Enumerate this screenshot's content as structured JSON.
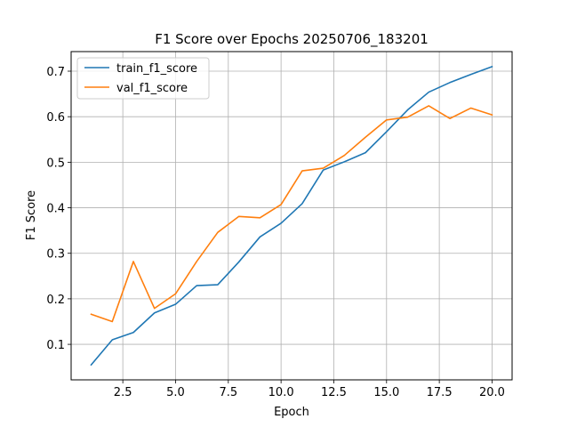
{
  "chart_data": {
    "type": "line",
    "title": "F1 Score over Epochs 20250706_183201",
    "xlabel": "Epoch",
    "ylabel": "F1 Score",
    "xlim": [
      0.05,
      20.95
    ],
    "ylim": [
      0.022,
      0.743
    ],
    "xticks": [
      2.5,
      5.0,
      7.5,
      10.0,
      12.5,
      15.0,
      17.5,
      20.0
    ],
    "xtick_labels": [
      "2.5",
      "5.0",
      "7.5",
      "10.0",
      "12.5",
      "15.0",
      "17.5",
      "20.0"
    ],
    "yticks": [
      0.1,
      0.2,
      0.3,
      0.4,
      0.5,
      0.6,
      0.7
    ],
    "ytick_labels": [
      "0.1",
      "0.2",
      "0.3",
      "0.4",
      "0.5",
      "0.6",
      "0.7"
    ],
    "grid": true,
    "legend_position": "top-left",
    "x": [
      1,
      2,
      3,
      4,
      5,
      6,
      7,
      8,
      9,
      10,
      11,
      12,
      13,
      14,
      15,
      16,
      17,
      18,
      19,
      20
    ],
    "series": [
      {
        "name": "train_f1_score",
        "color": "#1f77b4",
        "values": [
          0.055,
          0.11,
          0.126,
          0.169,
          0.188,
          0.229,
          0.231,
          0.281,
          0.336,
          0.366,
          0.409,
          0.483,
          0.501,
          0.521,
          0.567,
          0.615,
          0.654,
          0.675,
          0.693,
          0.71
        ]
      },
      {
        "name": "val_f1_score",
        "color": "#ff7f0e",
        "values": [
          0.166,
          0.15,
          0.282,
          0.179,
          0.211,
          0.282,
          0.346,
          0.381,
          0.378,
          0.407,
          0.481,
          0.487,
          0.515,
          0.555,
          0.593,
          0.599,
          0.624,
          0.596,
          0.619,
          0.604
        ]
      }
    ]
  }
}
